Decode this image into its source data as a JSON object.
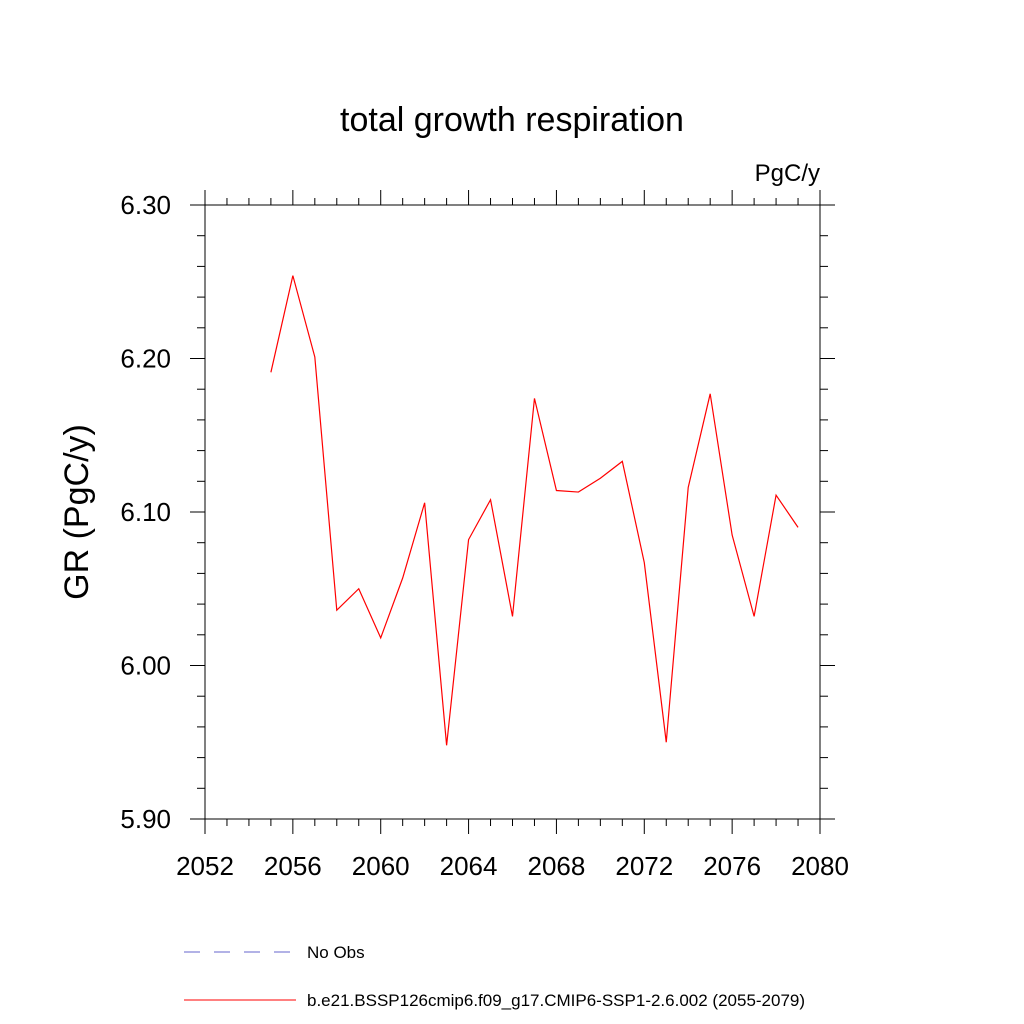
{
  "chart_data": {
    "type": "line",
    "title": "total growth respiration",
    "units_label": "PgC/y",
    "ylabel": "GR  (PgC/y)",
    "xlabel": "",
    "xlim": [
      2052,
      2080
    ],
    "ylim": [
      5.9,
      6.3
    ],
    "x_ticks": [
      "2052",
      "2056",
      "2060",
      "2064",
      "2068",
      "2072",
      "2076",
      "2080"
    ],
    "y_ticks": [
      "5.90",
      "6.00",
      "6.10",
      "6.20",
      "6.30"
    ],
    "grid": false,
    "legend_position": "bottom",
    "legend": [
      {
        "label": "No Obs",
        "color": "#6666cc",
        "dash": "dashed"
      },
      {
        "label": "b.e21.BSSP126cmip6.f09_g17.CMIP6-SSP1-2.6.002 (2055-2079)",
        "color": "#ff0000",
        "dash": "solid"
      }
    ],
    "series": [
      {
        "name": "b.e21.BSSP126cmip6.f09_g17.CMIP6-SSP1-2.6.002 (2055-2079)",
        "color": "#ff0000",
        "x": [
          2055,
          2056,
          2057,
          2058,
          2059,
          2060,
          2061,
          2062,
          2063,
          2064,
          2065,
          2066,
          2067,
          2068,
          2069,
          2070,
          2071,
          2072,
          2073,
          2074,
          2075,
          2076,
          2077,
          2078,
          2079
        ],
        "y": [
          6.191,
          6.254,
          6.201,
          6.036,
          6.05,
          6.018,
          6.057,
          6.106,
          5.948,
          6.082,
          6.108,
          6.032,
          6.174,
          6.114,
          6.113,
          6.122,
          6.133,
          6.067,
          5.95,
          6.116,
          6.177,
          6.085,
          6.032,
          6.111,
          6.09
        ]
      }
    ]
  }
}
